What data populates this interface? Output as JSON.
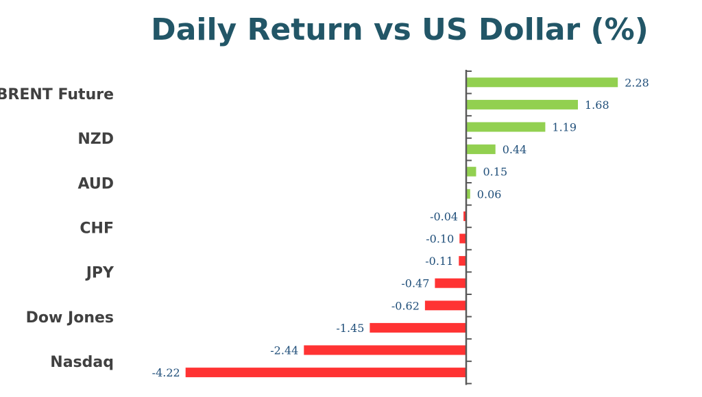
{
  "chart_data": {
    "type": "bar",
    "orientation": "horizontal",
    "title": "Daily Return vs US Dollar (%)",
    "values": [
      2.28,
      1.68,
      1.19,
      0.44,
      0.15,
      0.06,
      -0.04,
      -0.1,
      -0.11,
      -0.47,
      -0.62,
      -1.45,
      -2.44,
      -4.22
    ],
    "value_labels": [
      "2.28",
      "1.68",
      "1.19",
      "0.44",
      "0.15",
      "0.06",
      "-0.04",
      "-0.10",
      "-0.11",
      "-0.47",
      "-0.62",
      "-1.45",
      "-2.44",
      "-4.22"
    ],
    "visible_category_labels": [
      "BRENT Future",
      "NZD",
      "AUD",
      "CHF",
      "JPY",
      "Dow Jones",
      "Nasdaq"
    ],
    "xlabel": "",
    "ylabel": "",
    "legend": "none",
    "grid": false,
    "colors": {
      "positive": "#92D050",
      "negative": "#FF3333",
      "axis": "#595959",
      "title": "#225667",
      "category_label": "#404040",
      "value_label": "#1F4E79"
    }
  }
}
